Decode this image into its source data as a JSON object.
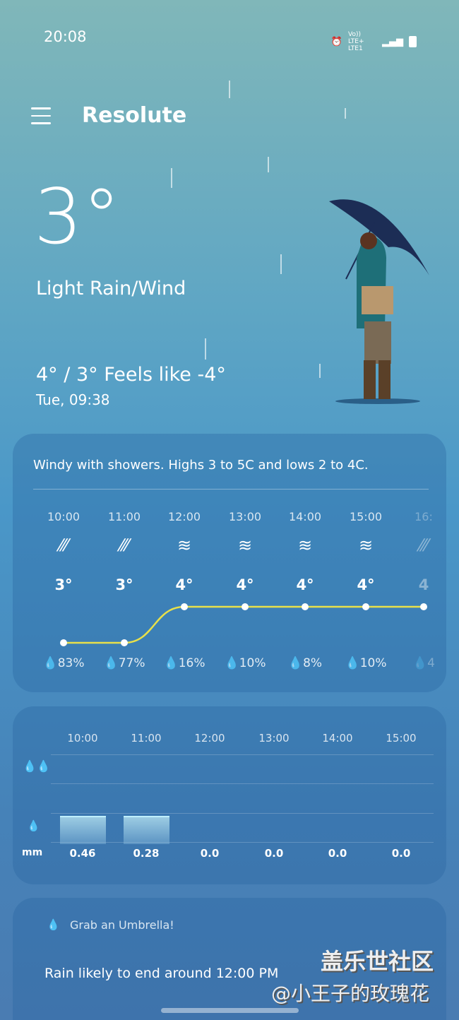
{
  "status": {
    "time": "20:08",
    "icons": [
      "alarm-icon",
      "volte-lte-icon",
      "signal-icon",
      "battery-icon"
    ],
    "network": "Vo)) LTE+ LTE1"
  },
  "header": {
    "city": "Resolute"
  },
  "current": {
    "temp": "3°",
    "condition": "Light Rain/Wind",
    "hilo": "4° / 3° Feels like -4°",
    "date": "Tue, 09:38"
  },
  "hourly": {
    "summary": "Windy with showers. Highs 3 to 5C and lows 2 to 4C.",
    "hours": [
      {
        "time": "10:00",
        "icon": "rain-icon",
        "temp": "3°",
        "pop": "83%"
      },
      {
        "time": "11:00",
        "icon": "rain-icon",
        "temp": "3°",
        "pop": "77%"
      },
      {
        "time": "12:00",
        "icon": "wind-icon",
        "temp": "4°",
        "pop": "16%"
      },
      {
        "time": "13:00",
        "icon": "wind-icon",
        "temp": "4°",
        "pop": "10%"
      },
      {
        "time": "14:00",
        "icon": "wind-icon",
        "temp": "4°",
        "pop": "8%"
      },
      {
        "time": "15:00",
        "icon": "wind-icon",
        "temp": "4°",
        "pop": "10%"
      },
      {
        "time": "16:",
        "icon": "rain-icon",
        "temp": "4",
        "pop": "4"
      }
    ],
    "temps": [
      3,
      3,
      4,
      4,
      4,
      4,
      4
    ],
    "line_color": "#e8e04a"
  },
  "precip": {
    "unit": "mm",
    "times": [
      "10:00",
      "11:00",
      "12:00",
      "13:00",
      "14:00",
      "15:00"
    ],
    "values": [
      "0.46",
      "0.28",
      "0.0",
      "0.0",
      "0.0",
      "0.0"
    ]
  },
  "umbrella": {
    "title": "Grab an Umbrella!",
    "message": "Rain likely to end around 12:00 PM"
  },
  "watermark": {
    "line1": "盖乐世社区",
    "line2": "@小王子的玫瑰花"
  }
}
